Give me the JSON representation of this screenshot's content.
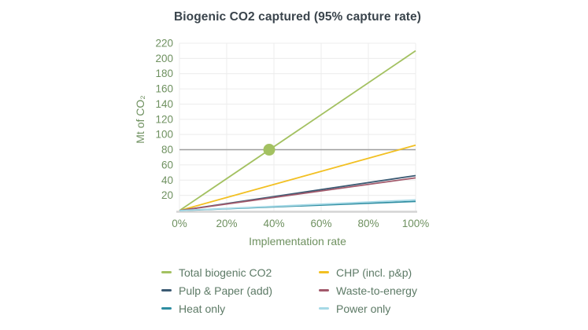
{
  "chart": {
    "title": "Biogenic CO2 captured (95% capture rate)",
    "xlabel": "Implementation rate",
    "ylabel_display": "Mt of CO₂"
  },
  "chart_data": {
    "type": "line",
    "title": "Biogenic CO2 captured (95% capture rate)",
    "xlabel": "Implementation rate",
    "ylabel": "Mt of CO2",
    "xlim": [
      0,
      100
    ],
    "ylim": [
      0,
      220
    ],
    "x_ticks": [
      {
        "value": 0,
        "label": "0%"
      },
      {
        "value": 20,
        "label": "20%"
      },
      {
        "value": 40,
        "label": "40%"
      },
      {
        "value": 60,
        "label": "60%"
      },
      {
        "value": 80,
        "label": "80%"
      },
      {
        "value": 100,
        "label": "100%"
      }
    ],
    "y_ticks": [
      20,
      40,
      60,
      80,
      100,
      120,
      140,
      160,
      180,
      200,
      220
    ],
    "x_gridlines": [
      0,
      20,
      40,
      60,
      80,
      100
    ],
    "y_gridlines": [
      20,
      40,
      60,
      80,
      100,
      120,
      140,
      160,
      180,
      200,
      220
    ],
    "grid": true,
    "legend_position": "bottom",
    "series": [
      {
        "name": "Total biogenic CO2",
        "color": "#a3c161",
        "x": [
          0,
          100
        ],
        "values": [
          0,
          210
        ]
      },
      {
        "name": "CHP (incl. p&p)",
        "color": "#f2c022",
        "x": [
          0,
          100
        ],
        "values": [
          0,
          86
        ]
      },
      {
        "name": "Pulp & Paper (add)",
        "color": "#3b5a73",
        "x": [
          0,
          100
        ],
        "values": [
          0,
          46
        ]
      },
      {
        "name": "Waste-to-energy",
        "color": "#a2596b",
        "x": [
          0,
          100
        ],
        "values": [
          0,
          43
        ]
      },
      {
        "name": "Heat only",
        "color": "#2e8da1",
        "x": [
          0,
          100
        ],
        "values": [
          0,
          12
        ]
      },
      {
        "name": "Power only",
        "color": "#a6d9e6",
        "x": [
          0,
          100
        ],
        "values": [
          0,
          14
        ]
      }
    ],
    "annotations": {
      "reference_line_y": 80,
      "marker": {
        "x": 38,
        "y": 80,
        "series": "Total biogenic CO2",
        "color": "#a3c161",
        "radius": 7.5
      }
    }
  },
  "colors": {
    "title_text": "#3a444c",
    "axis_text": "#6f9160",
    "legend_text": "#5d7a66",
    "grid": "#ececec",
    "axis_line": "#d4d4d4",
    "reference_line": "#9e9e9e",
    "background": "#ffffff"
  }
}
